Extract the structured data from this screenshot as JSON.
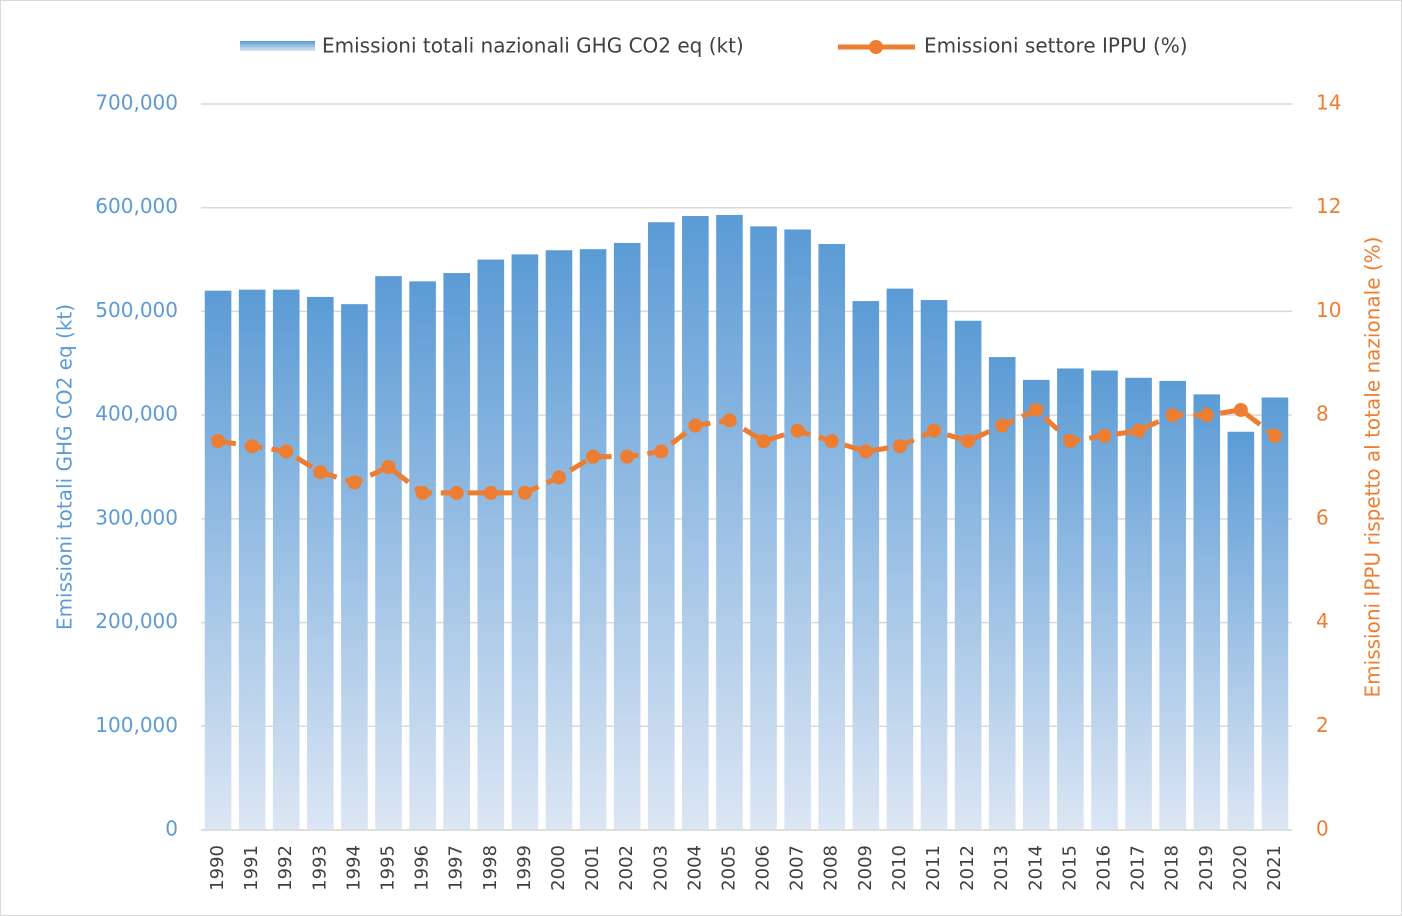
{
  "chart_data": {
    "type": "bar",
    "categories": [
      "1990",
      "1991",
      "1992",
      "1993",
      "1994",
      "1995",
      "1996",
      "1997",
      "1998",
      "1999",
      "2000",
      "2001",
      "2002",
      "2003",
      "2004",
      "2005",
      "2006",
      "2007",
      "2008",
      "2009",
      "2010",
      "2011",
      "2012",
      "2013",
      "2014",
      "2015",
      "2016",
      "2017",
      "2018",
      "2019",
      "2020",
      "2021"
    ],
    "series": [
      {
        "name": "Emissioni totali nazionali GHG CO2 eq (kt)",
        "color": "#5b9bd5",
        "values": [
          520000,
          521000,
          521000,
          514000,
          507000,
          534000,
          529000,
          537000,
          550000,
          555000,
          559000,
          560000,
          566000,
          586000,
          592000,
          593000,
          582000,
          579000,
          565000,
          510000,
          522000,
          511000,
          491000,
          456000,
          434000,
          445000,
          443000,
          436000,
          433000,
          420000,
          384000,
          417000
        ]
      },
      {
        "name": "Emissioni settore IPPU (%)",
        "color": "#ed7d31",
        "type": "line",
        "axis": "y2",
        "values": [
          7.5,
          7.4,
          7.3,
          6.9,
          6.7,
          7.0,
          6.5,
          6.5,
          6.5,
          6.5,
          6.8,
          7.2,
          7.2,
          7.3,
          7.8,
          7.9,
          7.5,
          7.7,
          7.5,
          7.3,
          7.4,
          7.7,
          7.5,
          7.8,
          8.1,
          7.5,
          7.6,
          7.7,
          8.0,
          8.0,
          8.1,
          7.6
        ]
      }
    ],
    "y_label": "Emissioni totali  GHG CO2 eq (kt)",
    "y2_label": "Emissioni IPPU rispetto al totale nazionale (%)",
    "ylim": [
      0,
      700000
    ],
    "yticks": [
      0,
      {
        "value": 100000,
        "label": "100,000"
      },
      {
        "value": 200000,
        "label": "200,000"
      },
      {
        "value": 300000,
        "label": "300,000"
      },
      {
        "value": 400000,
        "label": "400,000"
      },
      {
        "value": 500000,
        "label": "500,000"
      },
      {
        "value": 600000,
        "label": "600,000"
      },
      {
        "value": 700000,
        "label": "700,000"
      }
    ],
    "y2lim": [
      0,
      14
    ],
    "y2ticks": [
      0,
      2,
      4,
      6,
      8,
      10,
      12,
      14
    ],
    "grid": true
  }
}
